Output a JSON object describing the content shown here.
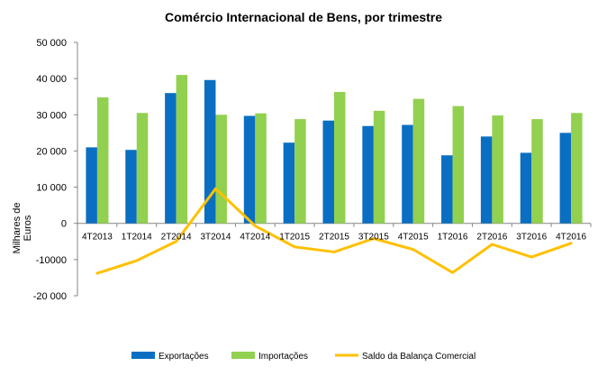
{
  "chart_data": {
    "type": "bar",
    "title": "Comércio Internacional de Bens, por trimestre",
    "ylabel": "Milhares de Euros",
    "xlabel": "",
    "ylim": [
      -20000,
      50000
    ],
    "yticks": [
      50000,
      40000,
      30000,
      20000,
      10000,
      0,
      -10000,
      -20000
    ],
    "ytick_labels": [
      "50 000",
      "40 000",
      "30 000",
      "20 000",
      "10 000",
      "0",
      "-10000",
      "-20 000"
    ],
    "grid": false,
    "legend_position": "bottom",
    "categories": [
      "4T2013",
      "1T2014",
      "2T2014",
      "3T2014",
      "4T2014",
      "1T2015",
      "2T2015",
      "3T2015",
      "4T2015",
      "1T2016",
      "2T2016",
      "3T2016",
      "4T2016"
    ],
    "series": [
      {
        "name": "Exportações",
        "kind": "bar",
        "color": "#0a6fc2",
        "values": [
          21000,
          20300,
          36000,
          39600,
          29700,
          22300,
          28400,
          26900,
          27200,
          18800,
          24000,
          19500,
          25000
        ]
      },
      {
        "name": "Importações",
        "kind": "bar",
        "color": "#92d050",
        "values": [
          34800,
          30500,
          41000,
          30000,
          30400,
          28800,
          36300,
          31100,
          34400,
          32400,
          29800,
          28800,
          30500
        ]
      },
      {
        "name": "Saldo da Balança Comercial",
        "kind": "line",
        "color": "#ffc000",
        "values": [
          -13800,
          -10300,
          -5000,
          9600,
          -700,
          -6500,
          -7900,
          -4200,
          -7200,
          -13600,
          -5800,
          -9300,
          -5500
        ]
      }
    ]
  }
}
